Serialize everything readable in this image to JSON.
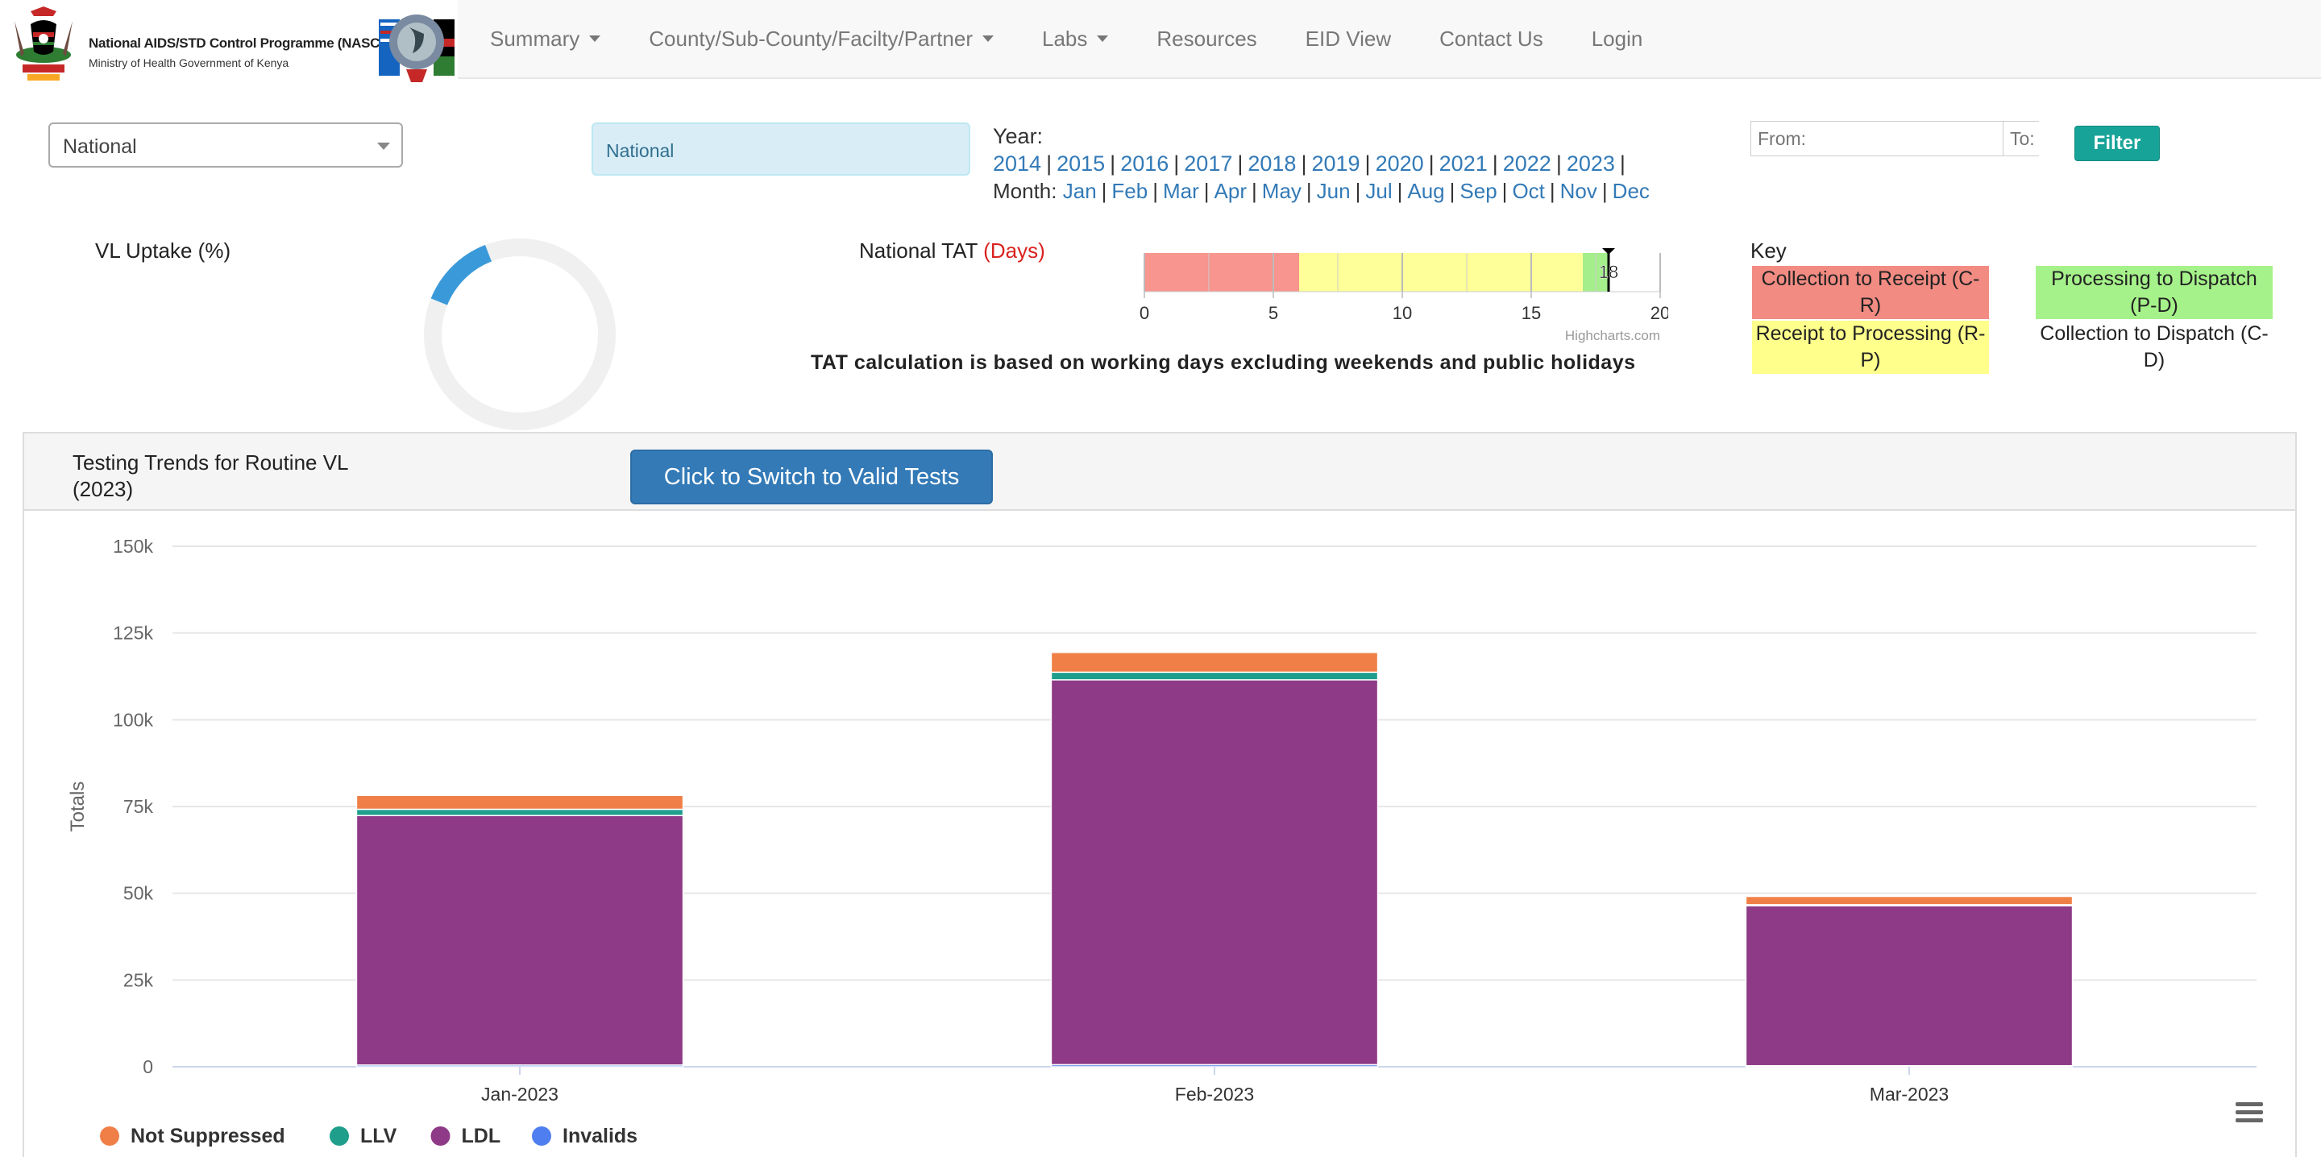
{
  "navbar": {
    "brand_title": "National AIDS/STD Control Programme (NASCOP)",
    "brand_sub": "Ministry of Health Government of Kenya",
    "items": [
      {
        "label": "Summary",
        "dropdown": true
      },
      {
        "label": "County/Sub-County/Facilty/Partner",
        "dropdown": true
      },
      {
        "label": "Labs",
        "dropdown": true
      },
      {
        "label": "Resources",
        "dropdown": false
      },
      {
        "label": "EID View",
        "dropdown": false
      },
      {
        "label": "Contact Us",
        "dropdown": false
      },
      {
        "label": "Login",
        "dropdown": false
      }
    ]
  },
  "filters": {
    "select_value": "National",
    "breadcrumb": "National",
    "year_label": "Year:",
    "years": [
      "2014",
      "2015",
      "2016",
      "2017",
      "2018",
      "2019",
      "2020",
      "2021",
      "2022",
      "2023"
    ],
    "month_label": "Month:",
    "months": [
      "Jan",
      "Feb",
      "Mar",
      "Apr",
      "May",
      "Jun",
      "Jul",
      "Aug",
      "Sep",
      "Oct",
      "Nov",
      "Dec"
    ],
    "from_placeholder": "From:",
    "to_placeholder": "To:",
    "filter_label": "Filter"
  },
  "vl_uptake": {
    "title": "VL Uptake (%)",
    "fill_fraction": 0.13,
    "fill_color": "#3a9ad9",
    "track_color": "#f0f0f0"
  },
  "tat": {
    "title": "National TAT",
    "title_unit": "(Days)",
    "note": "TAT calculation is based on working days excluding weekends and public holidays",
    "credit": "Highcharts.com",
    "value_label": "18",
    "segments": [
      {
        "name": "C-R",
        "value": 6,
        "color": "#f7958e"
      },
      {
        "name": "R-P",
        "value": 11,
        "color": "#ffff99"
      },
      {
        "name": "P-D",
        "value": 1,
        "color": "#a4ee8c"
      }
    ],
    "total": 18,
    "axis_max": 20,
    "ticks": [
      "0",
      "5",
      "10",
      "15",
      "20"
    ]
  },
  "key": {
    "title": "Key",
    "cr": "Collection to Receipt (C-R)",
    "pd": "Processing to Dispatch (P-D)",
    "rp": "Receipt to Processing (R-P)",
    "cd": "Collection to Dispatch (C-D)"
  },
  "panel": {
    "title": "Testing Trends for Routine VL (2023)",
    "switch_label": "Click to Switch to Valid Tests"
  },
  "chart_data": {
    "type": "bar",
    "stacked": true,
    "title": "",
    "xlabel": "",
    "ylabel": "Totals",
    "ylim": [
      0,
      150000
    ],
    "yticks": [
      0,
      25000,
      50000,
      75000,
      100000,
      125000,
      150000
    ],
    "ytick_labels": [
      "0",
      "25k",
      "50k",
      "75k",
      "100k",
      "125k",
      "150k"
    ],
    "categories": [
      "Jan-2023",
      "Feb-2023",
      "Mar-2023"
    ],
    "series": [
      {
        "name": "Invalids",
        "color": "#4f7ef0",
        "values": [
          500,
          600,
          300
        ]
      },
      {
        "name": "LDL",
        "color": "#8e3a86",
        "values": [
          71900,
          110900,
          46100
        ]
      },
      {
        "name": "LLV",
        "color": "#1f9e8c",
        "values": [
          1800,
          2200,
          300
        ]
      },
      {
        "name": "Not Suppressed",
        "color": "#f07f47",
        "values": [
          4000,
          5700,
          2400
        ]
      }
    ],
    "legend": [
      "Not Suppressed",
      "LLV",
      "LDL",
      "Invalids"
    ],
    "legend_position": "bottom-left"
  },
  "icons": {
    "chart_menu": "hamburger-menu-icon"
  }
}
